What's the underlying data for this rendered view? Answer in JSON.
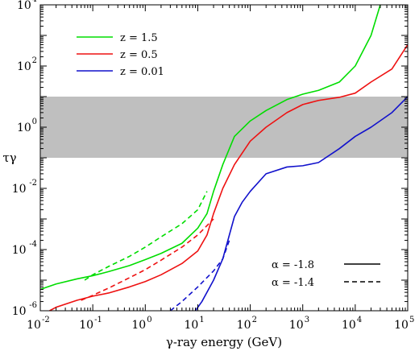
{
  "chart_data": {
    "type": "line",
    "xlabel": "γ-ray energy (GeV)",
    "ylabel": "τγ",
    "xscale": "log",
    "yscale": "log",
    "xlim": [
      0.01,
      100000
    ],
    "ylim": [
      1e-06,
      10000
    ],
    "grid": false,
    "legend": "top-left",
    "x_ticks": [
      {
        "base": "10",
        "exp": "-2"
      },
      {
        "base": "10",
        "exp": "-1"
      },
      {
        "base": "10",
        "exp": "0"
      },
      {
        "base": "10",
        "exp": "1"
      },
      {
        "base": "10",
        "exp": "2"
      },
      {
        "base": "10",
        "exp": "3"
      },
      {
        "base": "10",
        "exp": "4"
      },
      {
        "base": "10",
        "exp": "5"
      }
    ],
    "y_ticks": [
      {
        "base": "10",
        "exp": "-6"
      },
      {
        "base": "10",
        "exp": "-4"
      },
      {
        "base": "10",
        "exp": "-2"
      },
      {
        "base": "10",
        "exp": "0"
      },
      {
        "base": "10",
        "exp": "2"
      },
      {
        "base": "10",
        "exp": "4"
      }
    ],
    "band": {
      "y_low": 0.1,
      "y_high": 10,
      "color": "#bfbfbf"
    },
    "series": [
      {
        "name": "z = 1.5",
        "color": "#00dd00",
        "style": "solid",
        "points": [
          [
            0.01,
            5e-06
          ],
          [
            0.02,
            7.5e-06
          ],
          [
            0.05,
            1.1e-05
          ],
          [
            0.1,
            1.4e-05
          ],
          [
            0.2,
            1.9e-05
          ],
          [
            0.5,
            3e-05
          ],
          [
            1,
            4.7e-05
          ],
          [
            2,
            7.5e-05
          ],
          [
            5,
            0.00016
          ],
          [
            10,
            0.0005
          ],
          [
            15,
            0.0015
          ],
          [
            20,
            0.008
          ],
          [
            30,
            0.06
          ],
          [
            50,
            0.5
          ],
          [
            100,
            1.6
          ],
          [
            200,
            3.5
          ],
          [
            500,
            8.0
          ],
          [
            1000,
            12.0
          ],
          [
            2000,
            16.0
          ],
          [
            5000,
            30.0
          ],
          [
            10000,
            100.0
          ],
          [
            20000,
            1000.0
          ],
          [
            30000,
            10000.0
          ]
        ]
      },
      {
        "name": "z = 1.5",
        "color": "#00dd00",
        "style": "dashed",
        "points": [
          [
            0.07,
            1e-05
          ],
          [
            0.1,
            1.5e-05
          ],
          [
            0.2,
            2.8e-05
          ],
          [
            0.5,
            6e-05
          ],
          [
            1,
            0.00012
          ],
          [
            2,
            0.00026
          ],
          [
            5,
            0.0007
          ],
          [
            10,
            0.002
          ],
          [
            15,
            0.008
          ]
        ]
      },
      {
        "name": "z = 0.5",
        "color": "#ee1111",
        "style": "solid",
        "points": [
          [
            0.015,
            1e-06
          ],
          [
            0.02,
            1.3e-06
          ],
          [
            0.05,
            2.2e-06
          ],
          [
            0.1,
            3e-06
          ],
          [
            0.2,
            3.8e-06
          ],
          [
            0.5,
            6e-06
          ],
          [
            1,
            9e-06
          ],
          [
            2,
            1.5e-05
          ],
          [
            5,
            3.5e-05
          ],
          [
            10,
            9e-05
          ],
          [
            15,
            0.0003
          ],
          [
            20,
            0.0015
          ],
          [
            30,
            0.01
          ],
          [
            50,
            0.06
          ],
          [
            100,
            0.35
          ],
          [
            200,
            1.0
          ],
          [
            500,
            3.0
          ],
          [
            1000,
            5.5
          ],
          [
            2000,
            7.5
          ],
          [
            5000,
            9.5
          ],
          [
            10000,
            13.0
          ],
          [
            20000,
            30.0
          ],
          [
            50000,
            80.0
          ],
          [
            100000,
            500.0
          ]
        ]
      },
      {
        "name": "z = 0.5",
        "color": "#ee1111",
        "style": "dashed",
        "points": [
          [
            0.06,
            2.2e-06
          ],
          [
            0.1,
            3.2e-06
          ],
          [
            0.2,
            5.5e-06
          ],
          [
            0.5,
            1.2e-05
          ],
          [
            1,
            2.2e-05
          ],
          [
            2,
            4.5e-05
          ],
          [
            5,
            0.00012
          ],
          [
            10,
            0.0003
          ],
          [
            20,
            0.001
          ]
        ]
      },
      {
        "name": "z = 0.01",
        "color": "#1111cc",
        "style": "solid",
        "points": [
          [
            9,
            1e-06
          ],
          [
            12,
            2e-06
          ],
          [
            20,
            1e-05
          ],
          [
            30,
            5e-05
          ],
          [
            40,
            0.0003
          ],
          [
            50,
            0.0012
          ],
          [
            70,
            0.0035
          ],
          [
            100,
            0.008
          ],
          [
            200,
            0.03
          ],
          [
            500,
            0.05
          ],
          [
            1000,
            0.055
          ],
          [
            2000,
            0.07
          ],
          [
            5000,
            0.2
          ],
          [
            10000,
            0.5
          ],
          [
            20000,
            1.0
          ],
          [
            50000,
            3.0
          ],
          [
            100000,
            10.0
          ]
        ]
      },
      {
        "name": "z = 0.01",
        "color": "#1111cc",
        "style": "dashed",
        "points": [
          [
            3,
            1e-06
          ],
          [
            5,
            2e-06
          ],
          [
            10,
            6e-06
          ],
          [
            20,
            2e-05
          ],
          [
            30,
            5e-05
          ],
          [
            40,
            0.0002
          ]
        ]
      }
    ],
    "legend_entries": [
      {
        "label": "z = 1.5",
        "color": "#00dd00"
      },
      {
        "label": "z = 0.5",
        "color": "#ee1111"
      },
      {
        "label": "z = 0.01",
        "color": "#1111cc"
      }
    ],
    "style_entries": [
      {
        "label": "α = -1.8",
        "style": "solid"
      },
      {
        "label": "α = -1.4",
        "style": "dashed"
      }
    ]
  }
}
